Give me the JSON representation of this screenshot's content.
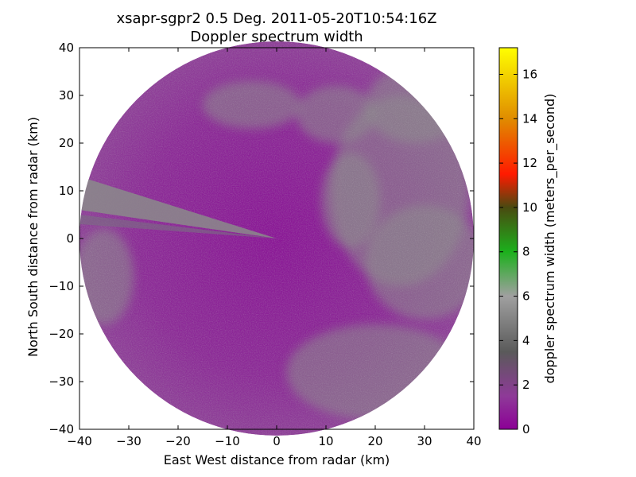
{
  "chart_data": {
    "type": "heatmap",
    "subtype": "radar-ppi",
    "title": "xsapr-sgpr2 0.5 Deg. 2011-05-20T10:54:16Z",
    "subtitle": "Doppler spectrum width",
    "xlabel": "East West distance from radar (km)",
    "ylabel": "North South distance from radar (km)",
    "xlim": [
      -40,
      40
    ],
    "ylim": [
      -40,
      40
    ],
    "xticks": [
      -40,
      -30,
      -20,
      -10,
      0,
      10,
      20,
      30,
      40
    ],
    "yticks": [
      -40,
      -30,
      -20,
      -10,
      0,
      10,
      20,
      30,
      40
    ],
    "xtick_labels": [
      "−40",
      "−30",
      "−20",
      "−10",
      "0",
      "10",
      "20",
      "30",
      "40"
    ],
    "ytick_labels": [
      "−40",
      "−30",
      "−20",
      "−10",
      "0",
      "10",
      "20",
      "30",
      "40"
    ],
    "max_range_km": 40,
    "field": "doppler spectrum width",
    "units": "meters_per_second",
    "colorbar": {
      "label": "doppler spectrum width (meters_per_second)",
      "vmin": 0,
      "vmax": 17.2,
      "ticks": [
        0,
        2,
        4,
        6,
        8,
        10,
        12,
        14,
        16
      ],
      "tick_labels": [
        "0",
        "2",
        "4",
        "6",
        "8",
        "10",
        "12",
        "14",
        "16"
      ],
      "colormap": [
        {
          "value": 0,
          "color": "#8c0096"
        },
        {
          "value": 1.5,
          "color": "#8e3a98"
        },
        {
          "value": 3.5,
          "color": "#5a5a5a"
        },
        {
          "value": 6,
          "color": "#a0a0a0"
        },
        {
          "value": 8,
          "color": "#1cb01c"
        },
        {
          "value": 10,
          "color": "#4a4a10"
        },
        {
          "value": 11.5,
          "color": "#ff1a00"
        },
        {
          "value": 14,
          "color": "#e08c00"
        },
        {
          "value": 17.2,
          "color": "#ffff00"
        }
      ]
    },
    "dominant_values": "mostly 0-2 m/s (purple) with regions of 3-6 m/s (gray) in the east and southeast; a narrow beam-blocked wedge toward the west-northwest"
  }
}
